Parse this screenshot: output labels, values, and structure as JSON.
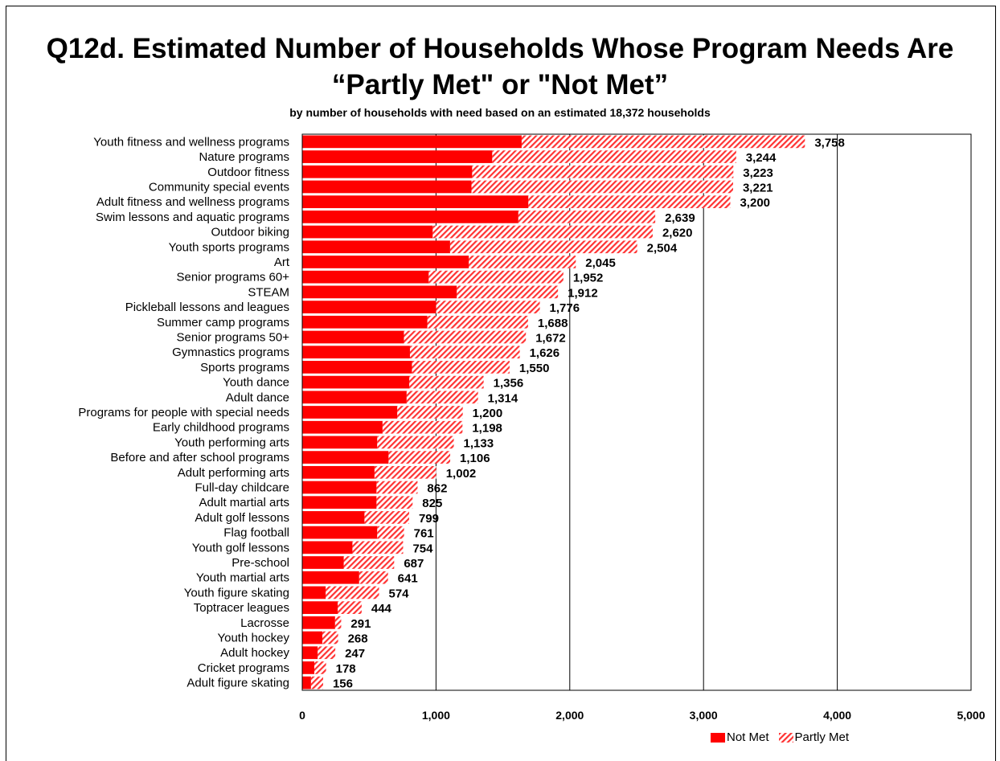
{
  "title": "Q12d. Estimated Number of Households Whose Program Needs Are “Partly Met\" or \"Not Met”",
  "subtitle": "by number of households with need based on an estimated 18,372 households",
  "colors": {
    "not_met": "#ff0000",
    "partly_met_stripe": "#ff3333"
  },
  "chart_data": {
    "type": "bar",
    "orientation": "horizontal",
    "stacked": true,
    "title": "Q12d. Estimated Number of Households Whose Program Needs Are “Partly Met\" or \"Not Met”",
    "subtitle": "by number of households with need based on an estimated 18,372 households",
    "xlim": [
      0,
      5000
    ],
    "xticks": [
      "0",
      "1,000",
      "2,000",
      "3,000",
      "4,000",
      "5,000"
    ],
    "xtick_values": [
      0,
      1000,
      2000,
      3000,
      4000,
      5000
    ],
    "grid": "vertical",
    "legend_placement": "bottom-right",
    "categories": [
      "Youth fitness and wellness programs",
      "Nature programs",
      "Outdoor fitness",
      "Community special events",
      "Adult fitness and wellness programs",
      "Swim lessons and aquatic programs",
      "Outdoor biking",
      "Youth sports programs",
      "Art",
      "Senior programs 60+",
      "STEAM",
      "Pickleball lessons and leagues",
      "Summer camp programs",
      "Senior programs 50+",
      "Gymnastics programs",
      "Sports programs",
      "Youth dance",
      "Adult dance",
      "Programs for people with special needs",
      "Early childhood programs",
      "Youth performing arts",
      "Before and after school programs",
      "Adult performing arts",
      "Full-day childcare",
      "Adult martial arts",
      "Adult golf lessons",
      "Flag football",
      "Youth golf lessons",
      "Pre-school",
      "Youth martial arts",
      "Youth figure skating",
      "Toptracer leagues",
      "Lacrosse",
      "Youth hockey",
      "Adult hockey",
      "Cricket programs",
      "Adult figure skating"
    ],
    "series": [
      {
        "name": "Not Met",
        "values": [
          1640,
          1420,
          1270,
          1265,
          1690,
          1615,
          975,
          1105,
          1245,
          945,
          1155,
          1000,
          935,
          760,
          805,
          820,
          800,
          780,
          710,
          600,
          560,
          645,
          540,
          555,
          555,
          465,
          560,
          375,
          310,
          425,
          175,
          265,
          245,
          150,
          115,
          90,
          65
        ]
      },
      {
        "name": "Partly Met",
        "values": [
          2118,
          1824,
          1953,
          1956,
          1510,
          1024,
          1645,
          1399,
          800,
          1007,
          757,
          776,
          753,
          912,
          821,
          730,
          556,
          534,
          490,
          598,
          573,
          461,
          462,
          307,
          270,
          334,
          201,
          379,
          377,
          216,
          399,
          179,
          46,
          118,
          132,
          88,
          91
        ]
      }
    ],
    "totals": [
      3758,
      3244,
      3223,
      3221,
      3200,
      2639,
      2620,
      2504,
      2045,
      1952,
      1912,
      1776,
      1688,
      1672,
      1626,
      1550,
      1356,
      1314,
      1200,
      1198,
      1133,
      1106,
      1002,
      862,
      825,
      799,
      761,
      754,
      687,
      641,
      574,
      444,
      291,
      268,
      247,
      178,
      156
    ],
    "total_labels": [
      "3,758",
      "3,244",
      "3,223",
      "3,221",
      "3,200",
      "2,639",
      "2,620",
      "2,504",
      "2,045",
      "1,952",
      "1,912",
      "1,776",
      "1,688",
      "1,672",
      "1,626",
      "1,550",
      "1,356",
      "1,314",
      "1,200",
      "1,198",
      "1,133",
      "1,106",
      "1,002",
      "862",
      "825",
      "799",
      "761",
      "754",
      "687",
      "641",
      "574",
      "444",
      "291",
      "268",
      "247",
      "178",
      "156"
    ]
  },
  "legend": {
    "not_met": "Not Met",
    "partly_met": "Partly Met"
  }
}
